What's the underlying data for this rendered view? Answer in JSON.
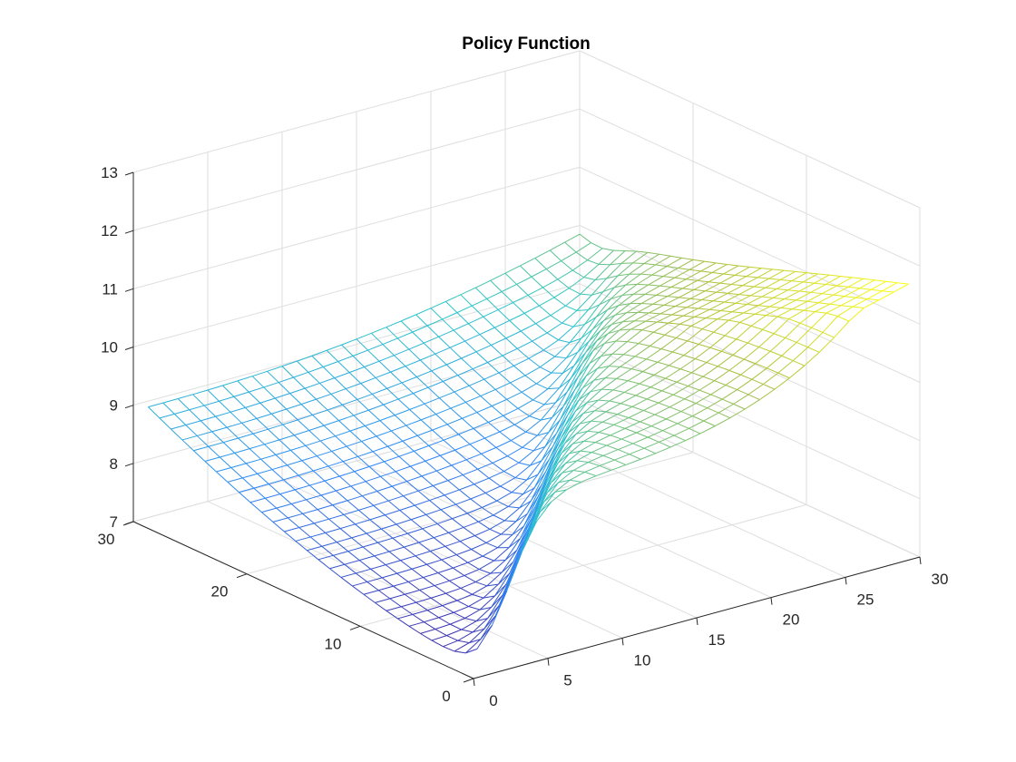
{
  "chart_data": {
    "type": "surface-mesh",
    "title": "Policy Function",
    "xlabel": "",
    "ylabel": "",
    "zlabel": "",
    "xlim": [
      0,
      30
    ],
    "ylim": [
      0,
      30
    ],
    "zlim": [
      7,
      13
    ],
    "x_ticks": [
      0,
      5,
      10,
      15,
      20,
      25,
      30
    ],
    "y_ticks": [
      0,
      10,
      20,
      30
    ],
    "z_ticks": [
      7,
      8,
      9,
      10,
      11,
      12,
      13
    ],
    "grid": true,
    "colormap": [
      "#3e26a8",
      "#2e87f7",
      "#2bc6c9",
      "#a9be3e",
      "#f9fb15"
    ],
    "surface": {
      "x_range": [
        1,
        30
      ],
      "y_range": [
        1,
        30
      ],
      "grid_points": 30,
      "z_at_origin_corner": 7.05,
      "z_far_y_edge": 8.9,
      "z_far_x_edge": 8.0,
      "z_corner_max": 11.5,
      "plateau_floor": 7.6
    }
  }
}
